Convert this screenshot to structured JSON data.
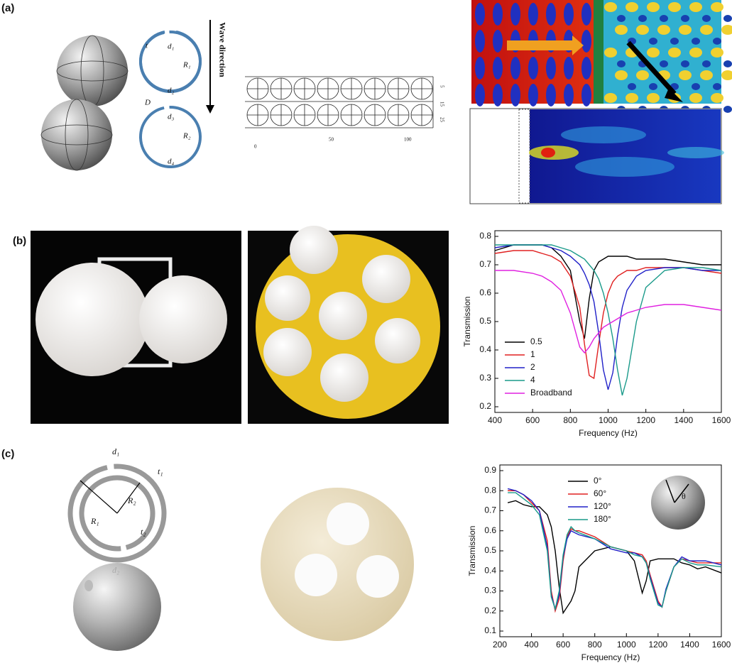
{
  "panel_labels": [
    "(a)",
    "(b)",
    "(c)"
  ],
  "panel_a": {
    "wave_direction": "Wave direction",
    "labels": [
      "t",
      "d₁",
      "R₁",
      "d₂",
      "D",
      "d₃",
      "R₂",
      "d₄"
    ],
    "array_x_ticks": [
      "0",
      "50",
      "100"
    ],
    "array_y_ticks": [
      "5",
      "15",
      "25"
    ]
  },
  "panel_c": {
    "labels": [
      "d₁",
      "t₁",
      "R₁",
      "R₂",
      "t₂",
      "d₂"
    ]
  },
  "chart_data": [
    {
      "type": "line",
      "xlabel": "Frequency  (Hz)",
      "ylabel": "Transmission",
      "x": [
        400,
        500,
        600,
        650,
        700,
        750,
        800,
        850,
        875,
        900,
        925,
        950,
        975,
        1000,
        1025,
        1050,
        1075,
        1100,
        1150,
        1200,
        1300,
        1400,
        1500,
        1600
      ],
      "series": [
        {
          "name": "0.5",
          "color": "#000000",
          "values": [
            0.75,
            0.77,
            0.77,
            0.77,
            0.76,
            0.73,
            0.68,
            0.5,
            0.44,
            0.58,
            0.68,
            0.71,
            0.72,
            0.73,
            0.73,
            0.73,
            0.73,
            0.73,
            0.72,
            0.72,
            0.72,
            0.71,
            0.7,
            0.7
          ]
        },
        {
          "name": "1",
          "color": "#e02020",
          "values": [
            0.74,
            0.75,
            0.75,
            0.74,
            0.73,
            0.71,
            0.66,
            0.55,
            0.42,
            0.31,
            0.3,
            0.42,
            0.53,
            0.6,
            0.64,
            0.66,
            0.67,
            0.68,
            0.68,
            0.69,
            0.69,
            0.69,
            0.68,
            0.67
          ]
        },
        {
          "name": "2",
          "color": "#2020c8",
          "values": [
            0.76,
            0.77,
            0.77,
            0.77,
            0.76,
            0.75,
            0.73,
            0.7,
            0.67,
            0.63,
            0.57,
            0.46,
            0.33,
            0.26,
            0.32,
            0.45,
            0.55,
            0.61,
            0.66,
            0.68,
            0.69,
            0.69,
            0.68,
            0.68
          ]
        },
        {
          "name": "4",
          "color": "#1a9a8a",
          "values": [
            0.77,
            0.77,
            0.77,
            0.77,
            0.77,
            0.76,
            0.75,
            0.73,
            0.72,
            0.7,
            0.68,
            0.65,
            0.6,
            0.53,
            0.44,
            0.33,
            0.24,
            0.3,
            0.5,
            0.62,
            0.68,
            0.69,
            0.69,
            0.68
          ]
        },
        {
          "name": "Broadband",
          "color": "#e020e0",
          "values": [
            0.68,
            0.68,
            0.67,
            0.66,
            0.64,
            0.61,
            0.53,
            0.41,
            0.39,
            0.41,
            0.44,
            0.46,
            0.48,
            0.49,
            0.5,
            0.51,
            0.52,
            0.53,
            0.54,
            0.55,
            0.56,
            0.56,
            0.55,
            0.54
          ]
        }
      ],
      "xlim": [
        400,
        1600
      ],
      "xticks": [
        400,
        600,
        800,
        1000,
        1200,
        1400,
        1600
      ],
      "ylim": [
        0.2,
        0.8
      ],
      "yticks": [
        0.2,
        0.3,
        0.4,
        0.5,
        0.6,
        0.7,
        0.8
      ],
      "legend": "lower left"
    },
    {
      "type": "line",
      "xlabel": "Frequency (Hz)",
      "ylabel": "Transmission",
      "inset_label": "θ",
      "x": [
        250,
        300,
        350,
        400,
        450,
        500,
        525,
        550,
        575,
        600,
        625,
        650,
        675,
        700,
        800,
        900,
        1000,
        1050,
        1100,
        1125,
        1150,
        1200,
        1225,
        1250,
        1300,
        1350,
        1400,
        1450,
        1500,
        1600
      ],
      "series": [
        {
          "name": "0°",
          "color": "#000000",
          "values": [
            0.74,
            0.75,
            0.73,
            0.72,
            0.72,
            0.68,
            0.62,
            0.5,
            0.32,
            0.19,
            0.22,
            0.25,
            0.3,
            0.42,
            0.5,
            0.52,
            0.5,
            0.45,
            0.29,
            0.35,
            0.45,
            0.46,
            0.46,
            0.46,
            0.46,
            0.44,
            0.43,
            0.41,
            0.42,
            0.39
          ]
        },
        {
          "name": "60°",
          "color": "#e02020",
          "values": [
            0.8,
            0.8,
            0.78,
            0.74,
            0.7,
            0.55,
            0.3,
            0.2,
            0.26,
            0.45,
            0.57,
            0.61,
            0.6,
            0.6,
            0.57,
            0.52,
            0.5,
            0.49,
            0.48,
            0.45,
            0.38,
            0.25,
            0.22,
            0.3,
            0.42,
            0.46,
            0.45,
            0.44,
            0.44,
            0.44
          ]
        },
        {
          "name": "120°",
          "color": "#2020c8",
          "values": [
            0.81,
            0.8,
            0.78,
            0.75,
            0.7,
            0.52,
            0.28,
            0.21,
            0.28,
            0.47,
            0.56,
            0.6,
            0.59,
            0.58,
            0.56,
            0.51,
            0.49,
            0.49,
            0.47,
            0.44,
            0.37,
            0.24,
            0.22,
            0.31,
            0.42,
            0.47,
            0.45,
            0.45,
            0.45,
            0.43
          ]
        },
        {
          "name": "180°",
          "color": "#1a9a8a",
          "values": [
            0.79,
            0.79,
            0.76,
            0.73,
            0.68,
            0.5,
            0.27,
            0.21,
            0.3,
            0.48,
            0.58,
            0.62,
            0.6,
            0.59,
            0.56,
            0.52,
            0.5,
            0.48,
            0.47,
            0.44,
            0.36,
            0.23,
            0.22,
            0.3,
            0.42,
            0.46,
            0.44,
            0.43,
            0.43,
            0.42
          ]
        }
      ],
      "xlim": [
        200,
        1600
      ],
      "xticks": [
        200,
        400,
        600,
        800,
        1000,
        1200,
        1400,
        1600
      ],
      "ylim": [
        0.1,
        0.9
      ],
      "yticks": [
        0.1,
        0.2,
        0.3,
        0.4,
        0.5,
        0.6,
        0.7,
        0.8,
        0.9
      ],
      "legend": "upper center"
    }
  ]
}
